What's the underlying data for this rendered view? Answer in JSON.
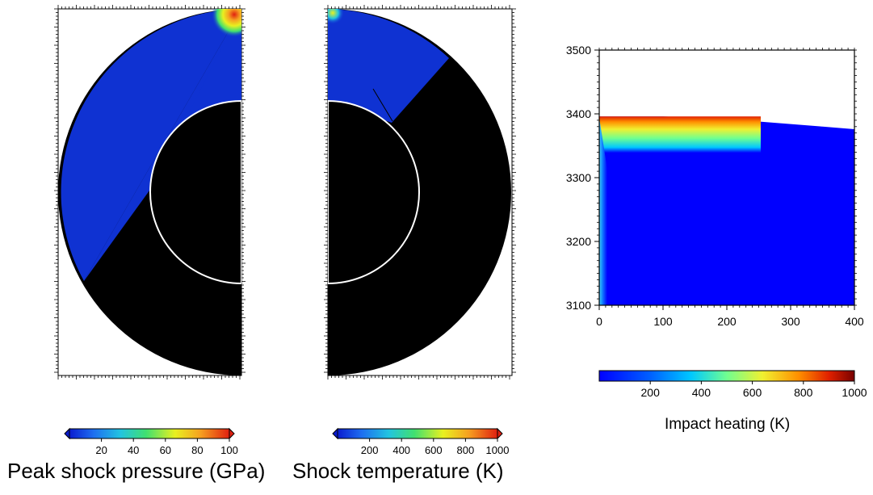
{
  "chart_data": [
    {
      "type": "heatmap",
      "description_key": "panel-a",
      "colorbar": {
        "label": "Peak shock pressure (GPa)",
        "ticks": [
          20,
          40,
          60,
          80,
          100
        ],
        "range": [
          0,
          100
        ],
        "colors": [
          "#0a1ccf",
          "#1e6ef0",
          "#22c4e0",
          "#40e070",
          "#e8f020",
          "#f6a020",
          "#e02010"
        ]
      }
    },
    {
      "type": "heatmap",
      "description_key": "panel-b",
      "colorbar": {
        "label": "Shock temperature (K)",
        "ticks": [
          200,
          400,
          600,
          800,
          1000
        ],
        "range": [
          0,
          1000
        ],
        "colors": [
          "#0a1ccf",
          "#1e6ef0",
          "#22c4e0",
          "#40e070",
          "#e8f020",
          "#f6a020",
          "#e02010"
        ]
      }
    },
    {
      "type": "heatmap",
      "description_key": "panel-c",
      "x_ticks": [
        0,
        100,
        200,
        300,
        400
      ],
      "y_ticks": [
        3100,
        3200,
        3300,
        3400,
        3500
      ],
      "xlim": [
        0,
        400
      ],
      "ylim": [
        3100,
        3500
      ],
      "surface_profile": [
        [
          0,
          3396
        ],
        [
          50,
          3396
        ],
        [
          100,
          3396
        ],
        [
          150,
          3394
        ],
        [
          200,
          3392
        ],
        [
          250,
          3388
        ],
        [
          300,
          3384
        ],
        [
          350,
          3380
        ],
        [
          400,
          3376
        ]
      ],
      "colorbar": {
        "label": "Impact heating (K)",
        "ticks": [
          200,
          400,
          600,
          800,
          1000
        ],
        "range": [
          0,
          1000
        ],
        "colors": [
          "#0000ff",
          "#0060ff",
          "#00c8ff",
          "#70ff90",
          "#f0f030",
          "#ff9000",
          "#e02000",
          "#780000"
        ]
      }
    }
  ]
}
